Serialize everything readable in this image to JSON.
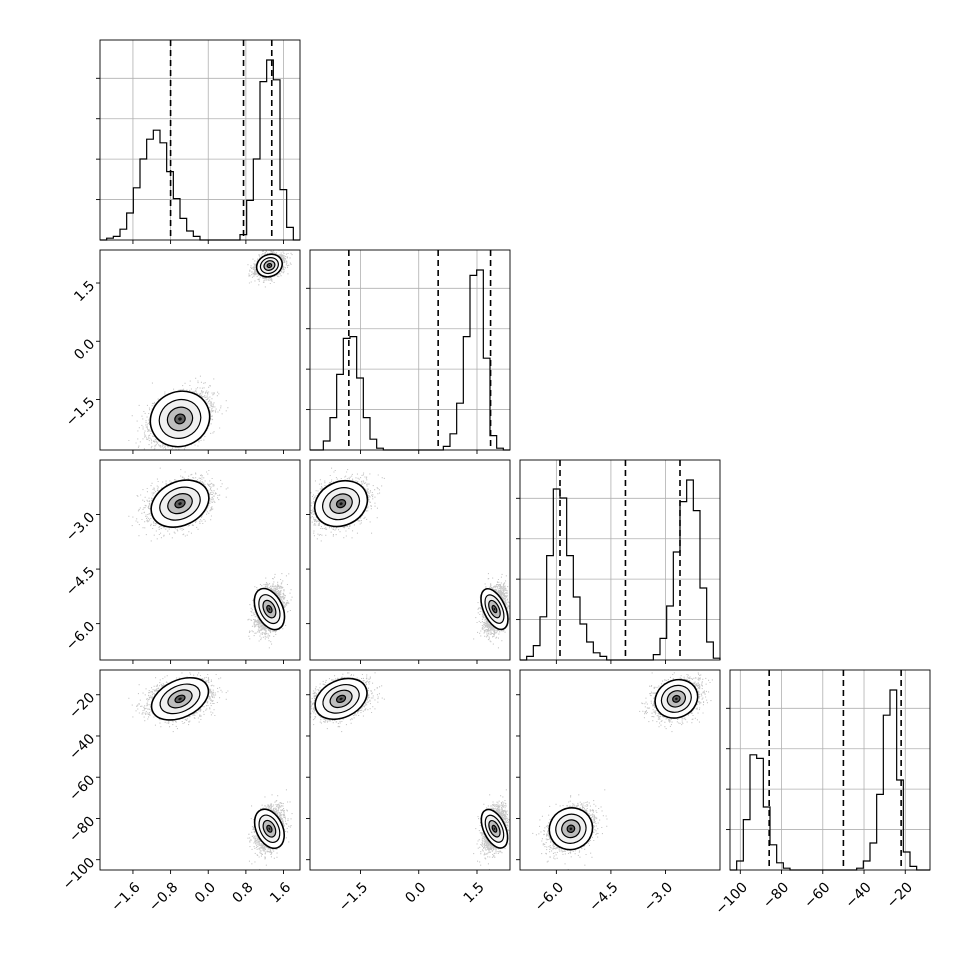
{
  "chart_data": {
    "type": "corner",
    "parameters": [
      {
        "range": [
          -2.3,
          1.95
        ],
        "ticks": [
          -1.6,
          -0.8,
          0.0,
          0.8,
          1.6
        ],
        "tick_labels": [
          "−1.6",
          "−0.8",
          "0.0",
          "0.8",
          "1.6"
        ],
        "quantiles": [
          -0.8,
          0.75,
          1.35
        ],
        "hist_heights": [
          0.0,
          0.01,
          0.02,
          0.06,
          0.15,
          0.29,
          0.45,
          0.56,
          0.61,
          0.54,
          0.38,
          0.23,
          0.12,
          0.05,
          0.02,
          0.0,
          0.0,
          0.0,
          0.0,
          0.0,
          0.0,
          0.03,
          0.22,
          0.45,
          0.88,
          1.0,
          0.89,
          0.28,
          0.07,
          0.0
        ]
      },
      {
        "range": [
          -2.8,
          2.35
        ],
        "ticks": [
          -1.5,
          0.0,
          1.5
        ],
        "tick_labels": [
          "−1.5",
          "0.0",
          "1.5"
        ],
        "quantiles": [
          -1.8,
          0.5,
          1.85
        ],
        "hist_heights": [
          0.0,
          0.0,
          0.05,
          0.18,
          0.42,
          0.62,
          0.63,
          0.4,
          0.18,
          0.06,
          0.01,
          0.0,
          0.0,
          0.0,
          0.0,
          0.0,
          0.0,
          0.0,
          0.0,
          0.0,
          0.02,
          0.09,
          0.26,
          0.63,
          0.97,
          1.0,
          0.51,
          0.08,
          0.01,
          0.0
        ]
      },
      {
        "range": [
          -7.0,
          -1.5
        ],
        "ticks": [
          -6.0,
          -4.5,
          -3.0
        ],
        "tick_labels": [
          "−6.0",
          "−4.5",
          "−3.0"
        ],
        "quantiles": [
          -5.9,
          -4.1,
          -2.6
        ],
        "hist_heights": [
          0.0,
          0.02,
          0.08,
          0.24,
          0.58,
          0.95,
          0.9,
          0.58,
          0.35,
          0.2,
          0.1,
          0.04,
          0.02,
          0.0,
          0.0,
          0.0,
          0.0,
          0.0,
          0.0,
          0.0,
          0.03,
          0.12,
          0.3,
          0.6,
          0.88,
          1.0,
          0.83,
          0.4,
          0.1,
          0.01
        ]
      },
      {
        "range": [
          -105.0,
          -8.0
        ],
        "ticks": [
          -100,
          -80,
          -60,
          -40,
          -20
        ],
        "tick_labels": [
          "−100",
          "−80",
          "−60",
          "−40",
          "−20"
        ],
        "quantiles": [
          -86.0,
          -50.0,
          -22.0
        ],
        "hist_heights": [
          0.0,
          0.05,
          0.28,
          0.64,
          0.62,
          0.35,
          0.14,
          0.04,
          0.01,
          0.0,
          0.0,
          0.0,
          0.0,
          0.0,
          0.0,
          0.0,
          0.0,
          0.0,
          0.0,
          0.01,
          0.05,
          0.15,
          0.42,
          0.86,
          1.0,
          0.5,
          0.1,
          0.02,
          0.0,
          0.0
        ]
      }
    ],
    "modes": [
      {
        "mean": [
          -0.6,
          -2.0,
          -2.7,
          -22.0
        ],
        "sd": [
          0.32,
          0.35,
          0.3,
          4.5
        ],
        "weight": 0.5
      },
      {
        "mean": [
          1.3,
          1.95,
          -5.6,
          -85.0
        ],
        "sd": [
          0.14,
          0.14,
          0.3,
          5.0
        ],
        "weight": 0.5
      }
    ],
    "grid": true
  }
}
